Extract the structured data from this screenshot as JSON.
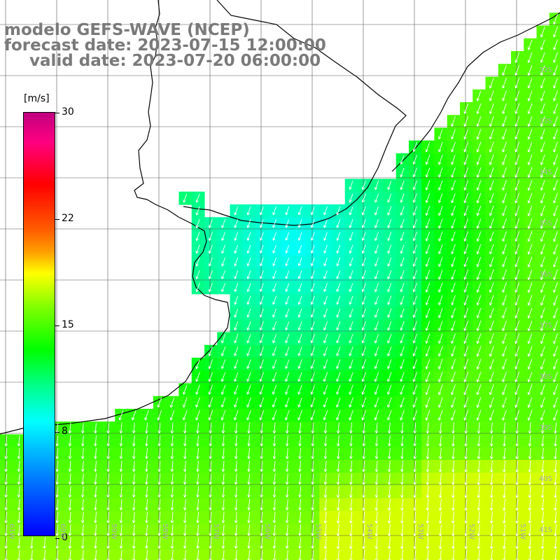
{
  "title": {
    "line1": "modelo GEFS-WAVE (NCEP)",
    "line2": "forecast date: 2023-07-15 12:00:00",
    "line3": "valid date: 2023-07-20 06:00:00"
  },
  "colorbar": {
    "unit": "[m/s]",
    "ticks": [
      "30",
      "22",
      "15",
      "8",
      "0"
    ],
    "range": [
      0,
      30
    ],
    "colors": [
      "#0000ff",
      "#00ffff",
      "#00ff00",
      "#ffff00",
      "#ff0000",
      "#c00080"
    ]
  },
  "axes": {
    "lat_labels": [
      "32S",
      "33S",
      "34S",
      "35S",
      "36S",
      "37S",
      "38S",
      "39S",
      "40S",
      "41S"
    ],
    "lon_labels": [
      "61W",
      "60W",
      "59W",
      "58W",
      "57W",
      "56W",
      "55W",
      "54W",
      "53W",
      "52W",
      "51W"
    ]
  },
  "colors": {
    "land": "#ffffff",
    "grid": "#555555",
    "coast": "#000000",
    "arrow": "#ffffff",
    "label": "#7a7a7a"
  }
}
